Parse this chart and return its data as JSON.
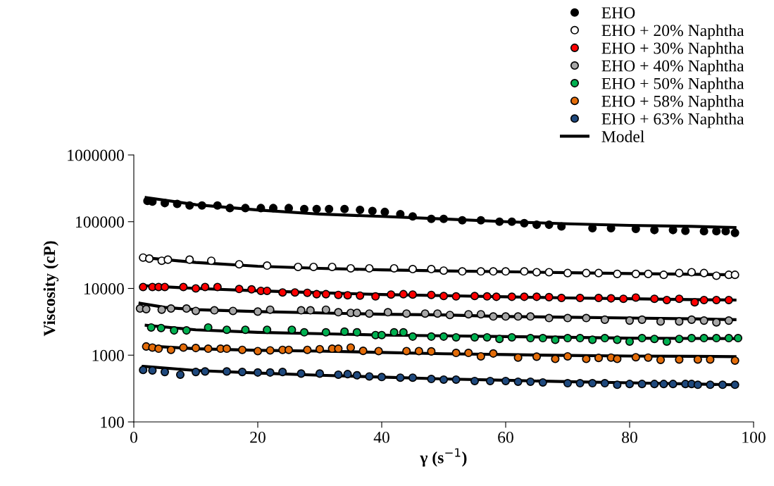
{
  "chart_data": {
    "type": "scatter",
    "xlabel": "γ (s$^{−1}$)",
    "ylabel": "Viscosity (cP)",
    "xlim": [
      0,
      100
    ],
    "xticks": [
      0,
      20,
      40,
      60,
      80,
      100
    ],
    "ylim": [
      100,
      1000000
    ],
    "yticks": [
      100,
      1000,
      10000,
      100000,
      1000000
    ],
    "log": "y",
    "grid": false,
    "legend": "top right",
    "marker": "circle",
    "series": [
      {
        "name": "EHO",
        "color": "#000000",
        "x": [
          2.2,
          3,
          5,
          7,
          9,
          11,
          13.5,
          15.5,
          18,
          20.5,
          22.5,
          25,
          27.5,
          29.5,
          31.5,
          34,
          36.5,
          38.5,
          40.5,
          43,
          45,
          48,
          50,
          53,
          56,
          59,
          61,
          63,
          65,
          67,
          69,
          74,
          77,
          81,
          84,
          87,
          89,
          92,
          94,
          95.5,
          97
        ],
        "values": [
          205000,
          200000,
          190000,
          185000,
          175000,
          175000,
          175000,
          160000,
          160000,
          160000,
          160000,
          160000,
          155000,
          155000,
          155000,
          155000,
          150000,
          145000,
          140000,
          130000,
          120000,
          110000,
          110000,
          105000,
          105000,
          100000,
          100000,
          95000,
          90000,
          90000,
          85000,
          80000,
          80000,
          78000,
          75000,
          75000,
          73000,
          72000,
          72000,
          72000,
          68000
        ]
      },
      {
        "name": "EHO + 20% Naphtha",
        "color": "#ffffff",
        "x": [
          1.5,
          2.5,
          4.5,
          5.5,
          9,
          12.5,
          17,
          21.5,
          26.5,
          29,
          32,
          35,
          38,
          42,
          45,
          48,
          50,
          53,
          56,
          58,
          60,
          63,
          65,
          67,
          70,
          73,
          75,
          78,
          81,
          83,
          85.5,
          88,
          90,
          92,
          94,
          96,
          97
        ],
        "values": [
          29000,
          28000,
          26000,
          27000,
          27000,
          26000,
          23000,
          22000,
          21000,
          21000,
          21000,
          20000,
          20000,
          20000,
          19500,
          19500,
          18500,
          18000,
          18000,
          18000,
          18000,
          18000,
          17500,
          17500,
          17000,
          17000,
          17000,
          16500,
          16500,
          16500,
          16000,
          17000,
          17500,
          17000,
          15500,
          16000,
          16000
        ]
      },
      {
        "name": "EHO + 30% Naphtha",
        "color": "#ff0000",
        "x": [
          1.5,
          3,
          4,
          5,
          8,
          10,
          11.5,
          13.5,
          17,
          19,
          20.5,
          21.5,
          24,
          26,
          28,
          29.5,
          31,
          33,
          34.5,
          36.5,
          39,
          41.5,
          43.5,
          45,
          48,
          50,
          52,
          55,
          57,
          58.5,
          61,
          63,
          65,
          67,
          69,
          72,
          75,
          77,
          79,
          81,
          84,
          86,
          88,
          90.5,
          92,
          94,
          96
        ],
        "values": [
          10500,
          10500,
          10500,
          10500,
          10500,
          10000,
          10500,
          10500,
          9800,
          9700,
          9200,
          9200,
          8700,
          8700,
          8600,
          8200,
          8200,
          8000,
          7900,
          7800,
          7600,
          8100,
          8200,
          8100,
          8000,
          7700,
          7600,
          7700,
          7600,
          7500,
          7500,
          7500,
          7500,
          7400,
          7200,
          7200,
          7200,
          7100,
          7000,
          7300,
          7000,
          6700,
          7000,
          6200,
          6700,
          6700,
          6700
        ]
      },
      {
        "name": "EHO + 40% Naphtha",
        "color": "#a6a6a6",
        "x": [
          1,
          2,
          4.5,
          6,
          8.5,
          10,
          13,
          16,
          20,
          22,
          27,
          28.5,
          31,
          33,
          35,
          36,
          38,
          41,
          44,
          47,
          49,
          51,
          54,
          56,
          58,
          60,
          62,
          64,
          67,
          70,
          73,
          76,
          80,
          82,
          85,
          88,
          90,
          92,
          94,
          96
        ],
        "values": [
          5000,
          4900,
          4800,
          5000,
          5000,
          4600,
          4700,
          4600,
          4500,
          4800,
          4700,
          4700,
          4800,
          4400,
          4300,
          4300,
          4200,
          4400,
          4200,
          4200,
          4200,
          4000,
          4100,
          4100,
          3800,
          3800,
          3800,
          3800,
          3600,
          3600,
          3600,
          3400,
          3300,
          3400,
          3200,
          3200,
          3400,
          3300,
          3100,
          3300
        ]
      },
      {
        "name": "EHO + 50% Naphtha",
        "color": "#00b050",
        "x": [
          2.8,
          4.4,
          6.5,
          8.5,
          12,
          15,
          18,
          21.5,
          25.5,
          27.5,
          31,
          34,
          36,
          39,
          40,
          42,
          43.5,
          45,
          48,
          50,
          52,
          55,
          57,
          59,
          61,
          64,
          66,
          68,
          70,
          72,
          74,
          76,
          78,
          80,
          82,
          84,
          86,
          88,
          90,
          92,
          94,
          96,
          97.5
        ],
        "values": [
          2600,
          2550,
          2350,
          2350,
          2600,
          2400,
          2400,
          2400,
          2400,
          2200,
          2200,
          2250,
          2200,
          2000,
          2000,
          2200,
          2200,
          1900,
          1900,
          1900,
          1850,
          1850,
          1850,
          1750,
          1850,
          1800,
          1800,
          1700,
          1800,
          1800,
          1700,
          1800,
          1700,
          1600,
          1800,
          1750,
          1600,
          1750,
          1800,
          1800,
          1800,
          1800,
          1800
        ]
      },
      {
        "name": "EHO + 58% Naphtha",
        "color": "#e36c09",
        "x": [
          2,
          3,
          4,
          6,
          8,
          10,
          12,
          14,
          15,
          17.5,
          20,
          22,
          24,
          25,
          28,
          30,
          32,
          33,
          35,
          37,
          39.5,
          44,
          46,
          48,
          52,
          54,
          56,
          58,
          62,
          65,
          68,
          70,
          73,
          75,
          77,
          78,
          81,
          83,
          85,
          88,
          91,
          93,
          97
        ],
        "values": [
          1350,
          1300,
          1250,
          1200,
          1300,
          1280,
          1250,
          1250,
          1250,
          1200,
          1150,
          1180,
          1200,
          1200,
          1200,
          1230,
          1250,
          1250,
          1300,
          1160,
          1150,
          1150,
          1150,
          1140,
          1080,
          1080,
          960,
          1060,
          920,
          950,
          880,
          960,
          880,
          910,
          920,
          880,
          930,
          920,
          850,
          860,
          860,
          860,
          830
        ]
      },
      {
        "name": "EHO + 63% Naphtha",
        "color": "#1f497d",
        "x": [
          1.5,
          3,
          5,
          7.5,
          10,
          11.5,
          15,
          17.5,
          20,
          22,
          24,
          27,
          30,
          33,
          34.5,
          36,
          38,
          40,
          43,
          45,
          48,
          50,
          52,
          55,
          57.5,
          60,
          62,
          64,
          66,
          70,
          72,
          74,
          76,
          78,
          80,
          82,
          84,
          85.5,
          87,
          89,
          90,
          91,
          93,
          95,
          97
        ],
        "values": [
          600,
          590,
          560,
          510,
          560,
          570,
          570,
          560,
          550,
          550,
          560,
          530,
          530,
          510,
          520,
          500,
          480,
          470,
          460,
          460,
          440,
          430,
          430,
          410,
          410,
          410,
          400,
          400,
          390,
          380,
          380,
          380,
          380,
          360,
          370,
          370,
          370,
          370,
          370,
          370,
          370,
          360,
          360,
          360,
          360
        ]
      },
      {
        "name": "Model",
        "type": "line",
        "marker": "none",
        "color": "#000000",
        "x": [
          2,
          10,
          20,
          30,
          40,
          50,
          60,
          70,
          80,
          90,
          97
        ],
        "values": [
          230000,
          180000,
          150000,
          130000,
          120000,
          110000,
          100000,
          93000,
          88000,
          85000,
          82000
        ]
      },
      {
        "type": "line",
        "marker": "none",
        "color": "#000000",
        "x": [
          1.5,
          10,
          20,
          30,
          40,
          50,
          60,
          70,
          80,
          90,
          97
        ],
        "values": [
          29000,
          24500,
          21500,
          20000,
          19000,
          18300,
          17800,
          17200,
          16700,
          16300,
          16000
        ]
      },
      {
        "type": "line",
        "marker": "none",
        "color": "#000000",
        "x": [
          1.5,
          10,
          20,
          30,
          40,
          50,
          60,
          70,
          80,
          90,
          97
        ],
        "values": [
          11000,
          10000,
          9200,
          8600,
          8100,
          7800,
          7500,
          7200,
          7000,
          6800,
          6700
        ]
      },
      {
        "type": "line",
        "marker": "none",
        "color": "#000000",
        "x": [
          1,
          5,
          10,
          20,
          30,
          40,
          50,
          60,
          70,
          80,
          90,
          97
        ],
        "values": [
          6000,
          5200,
          4800,
          4500,
          4300,
          4100,
          4000,
          3800,
          3700,
          3600,
          3500,
          3400
        ]
      },
      {
        "type": "line",
        "marker": "none",
        "color": "#000000",
        "x": [
          2,
          10,
          20,
          30,
          40,
          50,
          60,
          70,
          80,
          90,
          97
        ],
        "values": [
          2800,
          2400,
          2200,
          2100,
          2000,
          1950,
          1900,
          1850,
          1800,
          1780,
          1770
        ]
      },
      {
        "type": "line",
        "marker": "none",
        "color": "#000000",
        "x": [
          2,
          10,
          20,
          30,
          40,
          50,
          60,
          70,
          80,
          90,
          97
        ],
        "values": [
          1380,
          1250,
          1180,
          1150,
          1100,
          1050,
          1020,
          990,
          970,
          960,
          950
        ]
      },
      {
        "type": "line",
        "marker": "none",
        "color": "#000000",
        "x": [
          1.5,
          10,
          20,
          30,
          40,
          50,
          60,
          70,
          80,
          90,
          97
        ],
        "values": [
          680,
          590,
          540,
          500,
          470,
          440,
          420,
          400,
          385,
          370,
          360
        ]
      }
    ]
  }
}
